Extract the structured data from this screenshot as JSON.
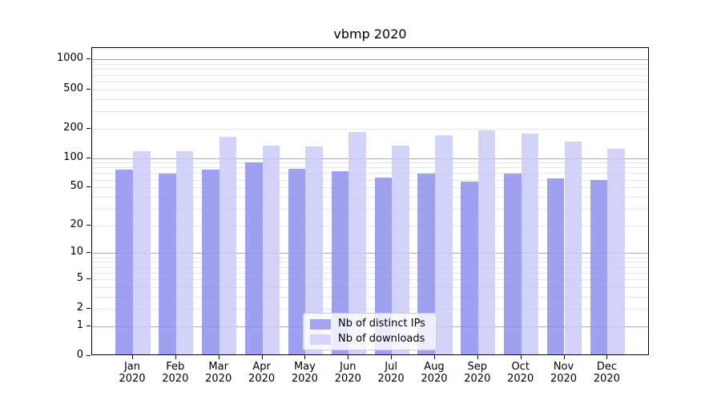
{
  "chart_data": {
    "type": "bar",
    "title": "vbmp 2020",
    "xlabel": "",
    "ylabel": "",
    "y_scale": "log1p",
    "ylim": [
      0,
      1300
    ],
    "grid": true,
    "legend_position": "bottom-center",
    "y_tick_labels": [
      "0",
      "1",
      "2",
      "5",
      "10",
      "20",
      "50",
      "100",
      "200",
      "500",
      "1000"
    ],
    "y_tick_values": [
      0,
      1,
      2,
      5,
      10,
      20,
      50,
      100,
      200,
      500,
      1000
    ],
    "categories": [
      "Jan 2020",
      "Feb 2020",
      "Mar 2020",
      "Apr 2020",
      "May 2020",
      "Jun 2020",
      "Jul 2020",
      "Aug 2020",
      "Sep 2020",
      "Oct 2020",
      "Nov 2020",
      "Dec 2020"
    ],
    "series": [
      {
        "name": "Nb of distinct IPs",
        "key": "ips",
        "color": "#a3a3ef",
        "fill": "rgba(143,143,237,0.85)",
        "values": [
          73,
          67,
          73,
          87,
          74,
          71,
          61,
          67,
          55,
          67,
          60,
          57
        ]
      },
      {
        "name": "Nb of downloads",
        "key": "downloads",
        "color": "#d6d6f8",
        "fill": "rgba(203,203,248,0.85)",
        "values": [
          113,
          113,
          158,
          130,
          126,
          178,
          128,
          164,
          183,
          170,
          142,
          120
        ]
      }
    ],
    "colors": {
      "grid_major": "#aaaaaa",
      "grid_minor": "#e5e5e5",
      "axis": "#000000",
      "text": "#000000",
      "background": "#ffffff"
    }
  }
}
